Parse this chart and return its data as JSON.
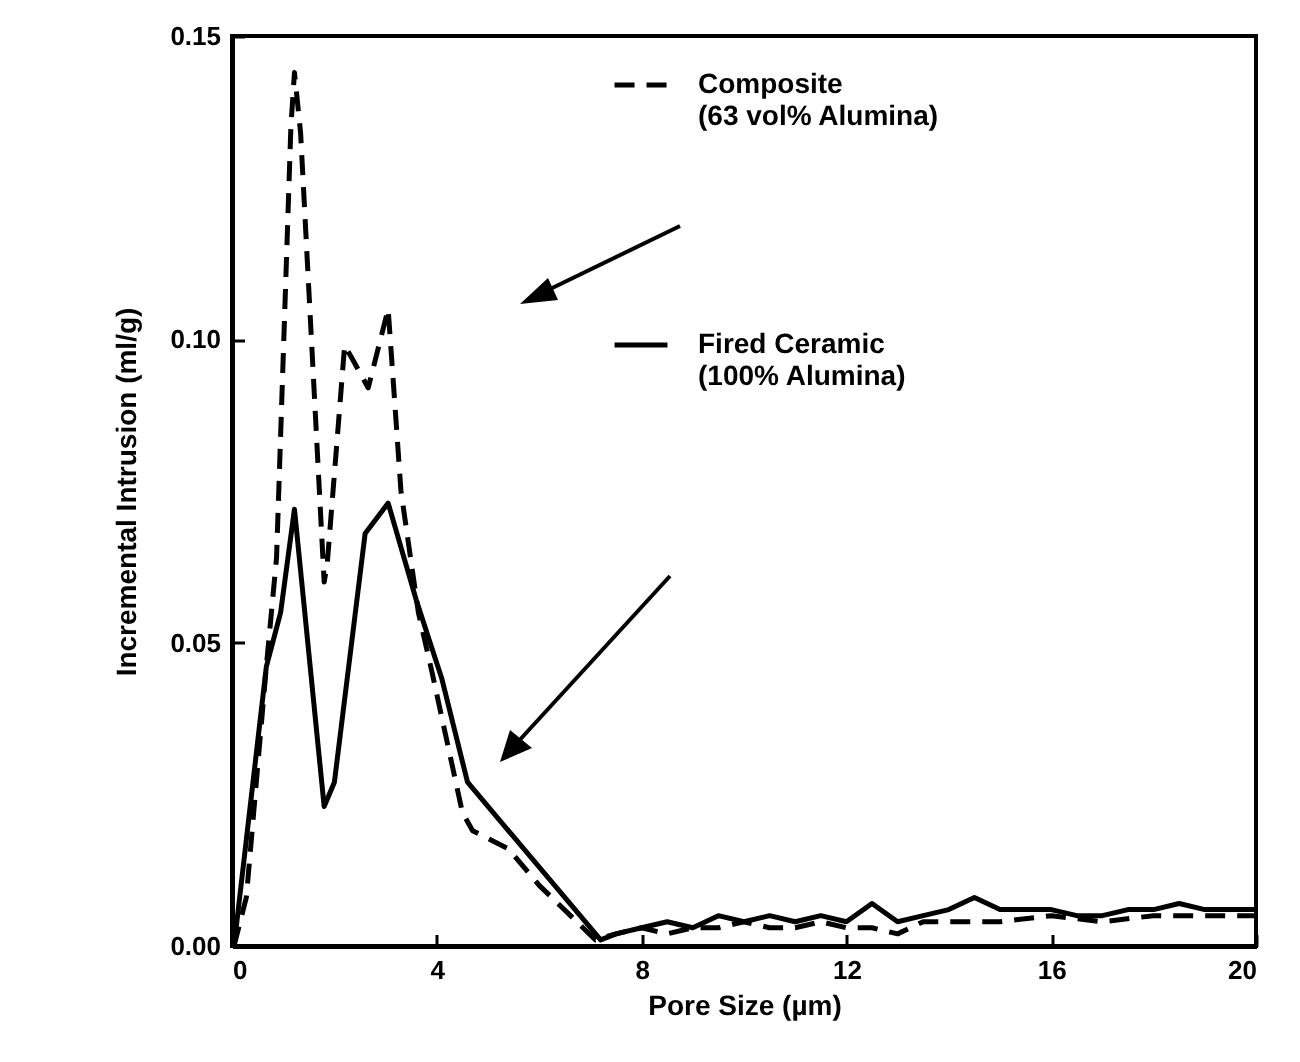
{
  "chart_data": {
    "type": "line",
    "xlabel": "Pore Size (µm)",
    "ylabel": "Incremental Intrusion (ml/g)",
    "xlim": [
      0,
      20
    ],
    "xticks": [
      0,
      4,
      8,
      12,
      16,
      20
    ],
    "ylim": [
      0,
      0.15
    ],
    "yticks": [
      {
        "value": 0,
        "label": "0.00"
      },
      {
        "value": 0.05,
        "label": "0.05"
      },
      {
        "value": 0.1,
        "label": "0.10"
      },
      {
        "value": 0.15,
        "label": "0.15"
      }
    ],
    "legend": "top right",
    "marker": "none",
    "series": [
      {
        "name": "Composite\n(63 vol% Alumina)",
        "color": "#000000",
        "line_style": "dashed",
        "x": [
          0.04,
          0.28,
          0.67,
          0.87,
          1.15,
          1.22,
          1.34,
          1.8,
          1.86,
          2.2,
          2.4,
          2.66,
          3.05,
          3.3,
          3.64,
          3.91,
          4.5,
          4.7,
          5.4,
          6.0,
          7.1,
          7.5,
          8,
          8.5,
          9,
          9.5,
          10,
          10.5,
          11,
          11.5,
          12,
          12.5,
          13,
          13.5,
          14,
          15,
          16,
          17,
          18,
          19,
          20
        ],
        "values": [
          0.0,
          0.008,
          0.046,
          0.064,
          0.135,
          0.144,
          0.134,
          0.06,
          0.063,
          0.099,
          0.096,
          0.092,
          0.105,
          0.075,
          0.055,
          0.045,
          0.022,
          0.019,
          0.016,
          0.01,
          0.001,
          0.002,
          0.003,
          0.002,
          0.003,
          0.003,
          0.004,
          0.003,
          0.003,
          0.004,
          0.003,
          0.003,
          0.002,
          0.004,
          0.004,
          0.004,
          0.005,
          0.004,
          0.005,
          0.005,
          0.005
        ]
      },
      {
        "name": "Fired Ceramic\n(100% Alumina)",
        "color": "#000000",
        "line_style": "solid",
        "x": [
          0.04,
          0.67,
          0.95,
          1.22,
          1.8,
          2.0,
          2.6,
          3.05,
          3.6,
          4.1,
          4.6,
          7.2,
          7.5,
          8,
          8.5,
          9,
          9.5,
          10,
          10.5,
          11,
          11.5,
          12,
          12.5,
          13,
          13.5,
          14,
          14.5,
          15,
          15.5,
          16,
          16.5,
          17,
          17.5,
          18,
          18.5,
          19,
          20
        ],
        "values": [
          0.0,
          0.046,
          0.055,
          0.072,
          0.023,
          0.027,
          0.068,
          0.073,
          0.057,
          0.044,
          0.027,
          0.001,
          0.002,
          0.003,
          0.004,
          0.003,
          0.005,
          0.004,
          0.005,
          0.004,
          0.005,
          0.004,
          0.007,
          0.004,
          0.005,
          0.006,
          0.008,
          0.006,
          0.006,
          0.006,
          0.005,
          0.005,
          0.006,
          0.006,
          0.007,
          0.006,
          0.006
        ]
      }
    ]
  }
}
